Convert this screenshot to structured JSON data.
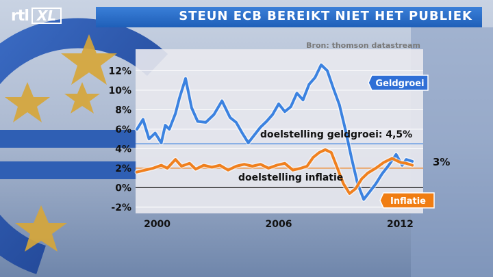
{
  "brand": {
    "channel": "rtl",
    "channel_suffix": "XL"
  },
  "header": {
    "title": "STEUN ECB BEREIKT NIET HET PUBLIEK"
  },
  "colors": {
    "geldgroei": "#3b82e0",
    "inflatie": "#f0801e",
    "title_bar": "#2a6fcc",
    "panel": "#e9e9ee"
  },
  "chart_data": {
    "type": "line",
    "source": "Bron: thomson datastream",
    "x_ticks": [
      "2000",
      "2006",
      "2012"
    ],
    "y_ticks": [
      "12%",
      "10%",
      "8%",
      "6%",
      "4%",
      "2%",
      "0%",
      "-2%"
    ],
    "xlim": [
      1999.0,
      2013.0
    ],
    "ylim": [
      -2.5,
      13.5
    ],
    "series": [
      {
        "name": "Geldgroei",
        "color": "#3b82e0",
        "points": [
          [
            1999.0,
            6.0
          ],
          [
            1999.3,
            7.0
          ],
          [
            1999.6,
            5.0
          ],
          [
            1999.9,
            5.6
          ],
          [
            2000.2,
            4.6
          ],
          [
            2000.4,
            6.4
          ],
          [
            2000.6,
            6.0
          ],
          [
            2000.9,
            7.6
          ],
          [
            2001.1,
            9.2
          ],
          [
            2001.4,
            11.2
          ],
          [
            2001.7,
            8.2
          ],
          [
            2002.0,
            6.8
          ],
          [
            2002.4,
            6.7
          ],
          [
            2002.8,
            7.5
          ],
          [
            2003.2,
            8.9
          ],
          [
            2003.6,
            7.2
          ],
          [
            2003.9,
            6.7
          ],
          [
            2004.2,
            5.6
          ],
          [
            2004.5,
            4.6
          ],
          [
            2004.8,
            5.4
          ],
          [
            2005.1,
            6.2
          ],
          [
            2005.4,
            6.8
          ],
          [
            2005.7,
            7.5
          ],
          [
            2006.0,
            8.6
          ],
          [
            2006.3,
            7.8
          ],
          [
            2006.6,
            8.3
          ],
          [
            2006.9,
            9.7
          ],
          [
            2007.2,
            9.0
          ],
          [
            2007.5,
            10.6
          ],
          [
            2007.8,
            11.3
          ],
          [
            2008.1,
            12.6
          ],
          [
            2008.4,
            12.0
          ],
          [
            2008.7,
            10.2
          ],
          [
            2009.0,
            8.5
          ],
          [
            2009.3,
            5.9
          ],
          [
            2009.6,
            3.0
          ],
          [
            2009.9,
            0.4
          ],
          [
            2010.2,
            -1.2
          ],
          [
            2010.5,
            -0.4
          ],
          [
            2010.8,
            0.4
          ],
          [
            2011.1,
            1.4
          ],
          [
            2011.4,
            2.2
          ],
          [
            2011.8,
            3.4
          ],
          [
            2012.1,
            2.3
          ],
          [
            2012.3,
            2.9
          ],
          [
            2012.6,
            2.7
          ]
        ]
      },
      {
        "name": "Inflatie",
        "color": "#f0801e",
        "points": [
          [
            1999.0,
            1.6
          ],
          [
            1999.4,
            1.8
          ],
          [
            1999.8,
            2.0
          ],
          [
            2000.2,
            2.3
          ],
          [
            2000.5,
            2.0
          ],
          [
            2000.9,
            2.9
          ],
          [
            2001.2,
            2.2
          ],
          [
            2001.6,
            2.5
          ],
          [
            2001.9,
            1.9
          ],
          [
            2002.3,
            2.3
          ],
          [
            2002.7,
            2.1
          ],
          [
            2003.1,
            2.3
          ],
          [
            2003.5,
            1.8
          ],
          [
            2003.9,
            2.2
          ],
          [
            2004.3,
            2.4
          ],
          [
            2004.7,
            2.2
          ],
          [
            2005.1,
            2.4
          ],
          [
            2005.5,
            2.0
          ],
          [
            2005.9,
            2.3
          ],
          [
            2006.3,
            2.5
          ],
          [
            2006.7,
            1.8
          ],
          [
            2007.1,
            2.0
          ],
          [
            2007.4,
            2.2
          ],
          [
            2007.7,
            3.1
          ],
          [
            2008.0,
            3.6
          ],
          [
            2008.3,
            3.9
          ],
          [
            2008.6,
            3.6
          ],
          [
            2008.9,
            2.0
          ],
          [
            2009.2,
            0.4
          ],
          [
            2009.5,
            -0.6
          ],
          [
            2009.8,
            -0.1
          ],
          [
            2010.1,
            0.9
          ],
          [
            2010.4,
            1.5
          ],
          [
            2010.8,
            2.0
          ],
          [
            2011.2,
            2.6
          ],
          [
            2011.6,
            3.0
          ],
          [
            2012.0,
            2.6
          ],
          [
            2012.3,
            2.5
          ],
          [
            2012.6,
            2.3
          ]
        ]
      }
    ],
    "reference_lines": [
      {
        "label": "doelstelling geldgroei: 4,5%",
        "value": 4.5,
        "color": "#3b82e0"
      },
      {
        "label": "doelstelling inflatie",
        "value": 2.0,
        "color": "#f0801e"
      },
      {
        "label": "",
        "value": 0.0,
        "color": "#222222"
      }
    ],
    "annotations": [
      {
        "text": "Geldgroei",
        "style": "blue-tag"
      },
      {
        "text": "Inflatie",
        "style": "orange-tag"
      },
      {
        "text": "3%",
        "style": "plain"
      }
    ]
  }
}
